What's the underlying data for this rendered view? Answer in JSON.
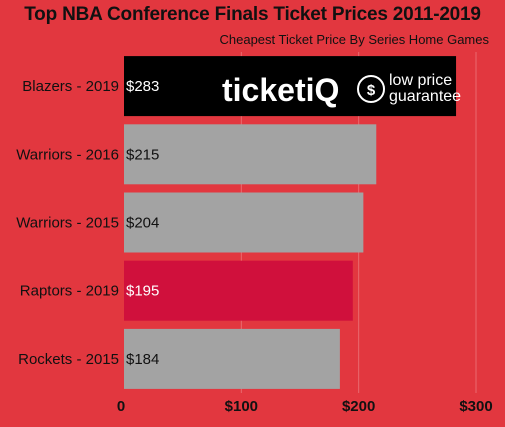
{
  "chart_data": {
    "type": "bar",
    "orientation": "horizontal",
    "title": "Top NBA Conference Finals Ticket Prices 2011-2019",
    "subtitle": "Cheapest Ticket Price By Series Home Games",
    "categories": [
      "Blazers - 2019",
      "Warriors - 2016",
      "Warriors - 2015",
      "Raptors - 2019",
      "Rockets - 2015"
    ],
    "values": [
      283,
      215,
      204,
      195,
      184
    ],
    "value_labels": [
      "$283",
      "$215",
      "$204",
      "$195",
      "$184"
    ],
    "bar_colors": [
      "#000000",
      "#a3a3a3",
      "#a3a3a3",
      "#d0103c",
      "#a3a3a3"
    ],
    "value_label_colors": [
      "#ffffff",
      "#111111",
      "#111111",
      "#ffffff",
      "#111111"
    ],
    "xlim": [
      0,
      300
    ],
    "x_ticks": [
      0,
      100,
      200,
      300
    ],
    "x_tick_labels": [
      "0",
      "$100",
      "$200",
      "$300"
    ],
    "grid": true,
    "xlabel": "",
    "ylabel": ""
  },
  "logo": {
    "brand_prefix": "ticket",
    "brand_suffix": "iQ",
    "tagline_line1": "low price",
    "tagline_line2": "guarantee"
  },
  "colors": {
    "background": "#e2373f",
    "gridline": "#ea6a6f"
  }
}
